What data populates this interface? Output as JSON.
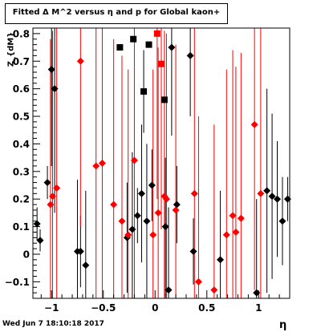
{
  "title": "Fitted Δ M^2 versus η and p for Global kaon+",
  "timestamp": "Wed Jun  7 18:10:18 2017",
  "chart_data": {
    "type": "scatter",
    "xlabel": "η",
    "ylabel": "Z_{dM}",
    "xlim": [
      -1.18,
      1.3
    ],
    "ylim": [
      -0.16,
      0.82
    ],
    "xticks": [
      -1,
      -0.5,
      0,
      0.5,
      1
    ],
    "xtick_labels": [
      "−1",
      "−0.5",
      "0",
      "0.5",
      "1"
    ],
    "yticks": [
      -0.1,
      0,
      0.1,
      0.2,
      0.3,
      0.4,
      0.5,
      0.6,
      0.7,
      0.8
    ],
    "ytick_labels": [
      "−0.1",
      "0",
      "0.1",
      "0.2",
      "0.3",
      "0.4",
      "0.5",
      "0.6",
      "0.7",
      "0.8"
    ],
    "grid": false,
    "series": [
      {
        "color": "#000000",
        "marker": "diamond",
        "points": [
          {
            "x": -1.14,
            "y": 0.11,
            "err": 0.06
          },
          {
            "x": -1.11,
            "y": 0.05,
            "err": 0.04
          },
          {
            "x": -1.04,
            "y": 0.26,
            "err": 0.06
          },
          {
            "x": -1.0,
            "y": 0.67,
            "err": 0.35
          },
          {
            "x": -0.97,
            "y": 0.6,
            "err": 0.45
          },
          {
            "x": -0.75,
            "y": 0.01,
            "err": 0.26
          },
          {
            "x": -0.72,
            "y": 0.01,
            "err": 0.13
          },
          {
            "x": -0.67,
            "y": -0.04,
            "err": 0.27
          },
          {
            "x": -0.27,
            "y": 0.06,
            "err": 0.2
          },
          {
            "x": -0.22,
            "y": 0.09,
            "err": 0.28
          },
          {
            "x": -0.17,
            "y": 0.14,
            "err": 0.1
          },
          {
            "x": -0.13,
            "y": 0.22,
            "err": 0.25
          },
          {
            "x": -0.08,
            "y": 0.12,
            "err": 0.28
          },
          {
            "x": -0.03,
            "y": 0.25,
            "err": 0.13
          },
          {
            "x": 0.1,
            "y": 0.1,
            "err": 0.25
          },
          {
            "x": 0.13,
            "y": -0.13,
            "err": 0.3
          },
          {
            "x": 0.16,
            "y": 0.75,
            "err": 0.32
          },
          {
            "x": 0.21,
            "y": 0.18,
            "err": 0.14
          },
          {
            "x": 0.34,
            "y": 0.72,
            "err": 0.22
          },
          {
            "x": 0.37,
            "y": 0.01,
            "err": 0.12
          },
          {
            "x": 0.63,
            "y": -0.02,
            "err": 0.25
          },
          {
            "x": 0.98,
            "y": -0.14,
            "err": 0.34
          },
          {
            "x": 1.08,
            "y": 0.23,
            "err": 0.37
          },
          {
            "x": 1.13,
            "y": 0.21,
            "err": 0.3
          },
          {
            "x": 1.18,
            "y": 0.2,
            "err": 0.21
          },
          {
            "x": 1.23,
            "y": 0.12,
            "err": 0.16
          },
          {
            "x": 1.28,
            "y": 0.2,
            "err": 0.08
          }
        ]
      },
      {
        "color": "#000000",
        "marker": "square",
        "points": [
          {
            "x": -0.34,
            "y": 0.75,
            "err": 0.0
          },
          {
            "x": -0.21,
            "y": 0.78,
            "err": 0.0
          },
          {
            "x": -0.11,
            "y": 0.59,
            "err": 0.15
          },
          {
            "x": -0.06,
            "y": 0.76,
            "err": 0.0
          },
          {
            "x": 0.09,
            "y": 0.56,
            "err": 0.0
          }
        ]
      },
      {
        "color": "#ff0000",
        "marker": "diamond",
        "points": [
          {
            "x": -1.01,
            "y": 0.18,
            "err": 0.6
          },
          {
            "x": -0.99,
            "y": 0.21,
            "err": 0.6
          },
          {
            "x": -0.95,
            "y": 0.24,
            "err": 0.6
          },
          {
            "x": -0.72,
            "y": 0.7,
            "err": 0.6
          },
          {
            "x": -0.57,
            "y": 0.32,
            "err": 0.6
          },
          {
            "x": -0.51,
            "y": 0.33,
            "err": 0.6
          },
          {
            "x": -0.4,
            "y": 0.18,
            "err": 0.6
          },
          {
            "x": -0.32,
            "y": 0.12,
            "err": 0.6
          },
          {
            "x": -0.26,
            "y": 0.07,
            "err": 0.6
          },
          {
            "x": -0.2,
            "y": 0.34,
            "err": 0.6
          },
          {
            "x": -0.02,
            "y": 0.07,
            "err": 0.6
          },
          {
            "x": 0.03,
            "y": 0.15,
            "err": 0.6
          },
          {
            "x": 0.09,
            "y": 0.21,
            "err": 0.6
          },
          {
            "x": 0.11,
            "y": 0.2,
            "err": 0.6
          },
          {
            "x": 0.2,
            "y": 0.16,
            "err": 0.6
          },
          {
            "x": 0.38,
            "y": 0.22,
            "err": 0.6
          },
          {
            "x": 0.42,
            "y": -0.1,
            "err": 0.6
          },
          {
            "x": 0.57,
            "y": -0.13,
            "err": 0.6
          },
          {
            "x": 0.69,
            "y": 0.07,
            "err": 0.6
          },
          {
            "x": 0.75,
            "y": 0.14,
            "err": 0.6
          },
          {
            "x": 0.78,
            "y": 0.08,
            "err": 0.6
          },
          {
            "x": 0.83,
            "y": 0.13,
            "err": 0.6
          },
          {
            "x": 0.96,
            "y": 0.47,
            "err": 0.6
          },
          {
            "x": 1.02,
            "y": 0.22,
            "err": 0.6
          }
        ]
      },
      {
        "color": "#ff0000",
        "marker": "square",
        "points": [
          {
            "x": 0.02,
            "y": 0.8,
            "err": 0.6
          },
          {
            "x": 0.06,
            "y": 0.69,
            "err": 0.6
          }
        ]
      }
    ]
  }
}
